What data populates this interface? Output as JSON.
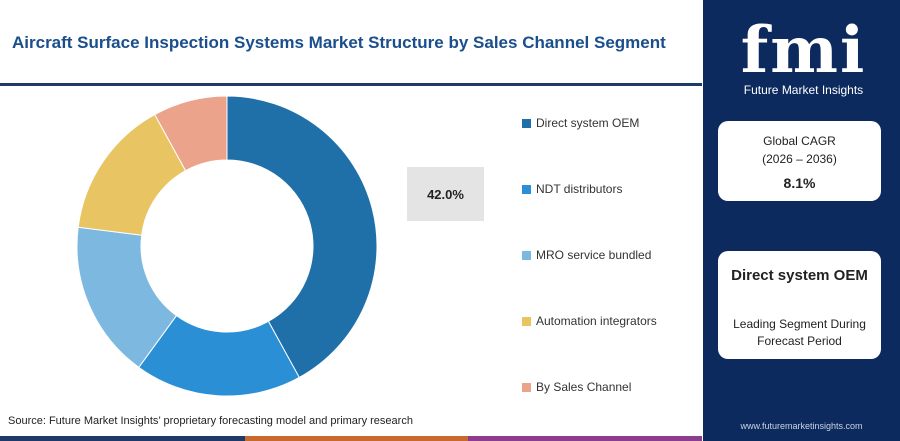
{
  "title": "Aircraft Surface Inspection Systems Market Structure by Sales Channel Segment",
  "callout": "42.0%",
  "source": "Source: Future Market Insights’ proprietary forecasting model and primary research",
  "brand": {
    "logo": "fmi",
    "tagline": "Future Market Insights",
    "url": "www.futuremarketinsights.com"
  },
  "cagr_card": {
    "label": "Global CAGR",
    "period": "(2026 – 2036)",
    "value": "8.1%"
  },
  "leading_card": {
    "segment": "Direct system OEM",
    "subtitle": "Leading Segment During Forecast Period"
  },
  "colors": {
    "panel": "#0d2a5e",
    "title": "#1a4e8c",
    "bottom_bar": [
      "#1f3a6a",
      "#c8692e",
      "#8c3d8f",
      "#1f3a6a"
    ]
  },
  "chart_data": {
    "type": "pie",
    "donut": true,
    "title": "Aircraft Surface Inspection Systems Market Structure by Sales Channel Segment",
    "categories": [
      "Direct system OEM",
      "NDT distributors",
      "MRO service bundled",
      "Automation integrators",
      "By Sales Channel"
    ],
    "values": [
      42.0,
      18.0,
      17.0,
      15.0,
      8.0
    ],
    "colors": [
      "#1f6fa8",
      "#2b8fd6",
      "#7db8e0",
      "#e8c462",
      "#eca38c"
    ],
    "legend_position": "right",
    "data_labels": [
      "42.0%"
    ]
  }
}
